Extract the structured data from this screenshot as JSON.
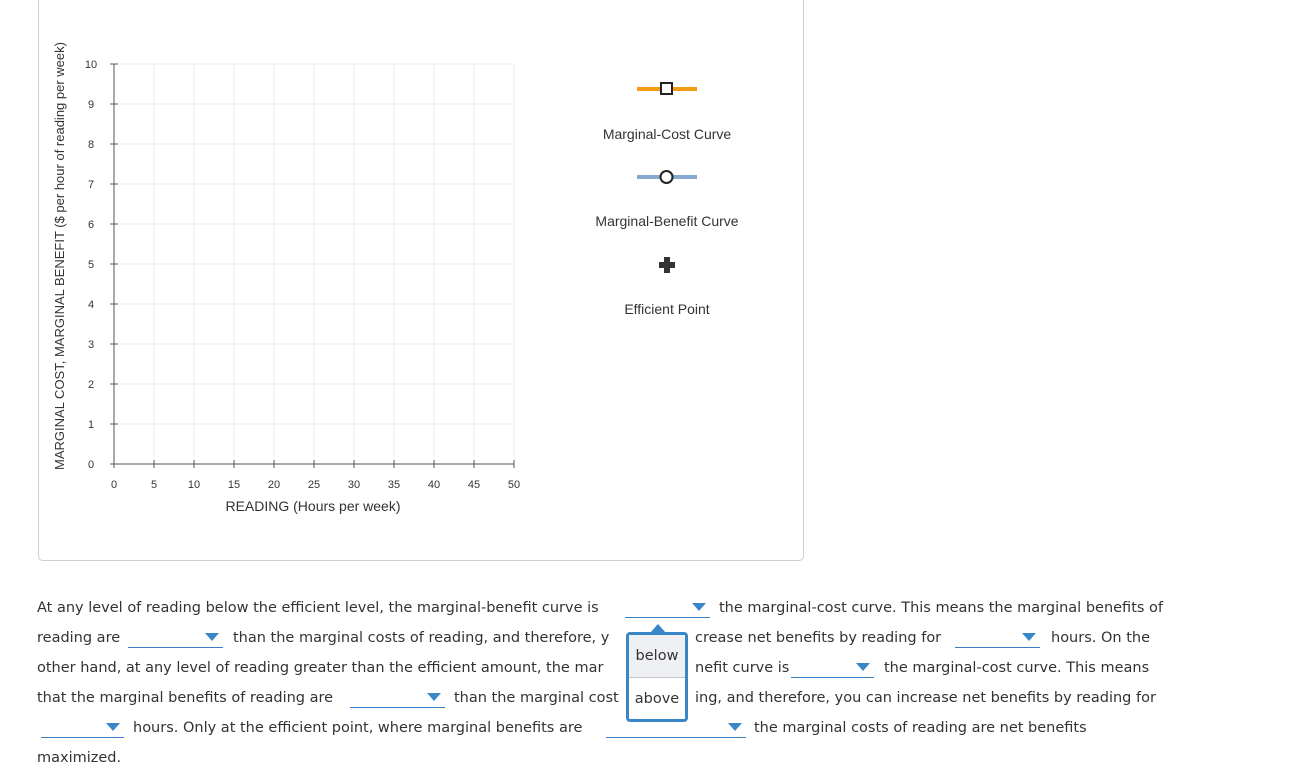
{
  "graph": {
    "y_axis_label": "MARGINAL COST, MARGINAL BENEFIT ($ per hour of reading per week)",
    "x_axis_label": "READING (Hours per week)",
    "y_ticks": [
      "0",
      "1",
      "2",
      "3",
      "4",
      "5",
      "6",
      "7",
      "8",
      "9",
      "10"
    ],
    "x_ticks": [
      "0",
      "5",
      "10",
      "15",
      "20",
      "25",
      "30",
      "35",
      "40",
      "45",
      "50"
    ],
    "x_range": [
      0,
      50
    ],
    "y_range": [
      0,
      10
    ],
    "grid": true
  },
  "legend": {
    "items": [
      {
        "label": "Marginal-Cost Curve",
        "icon": "square-marker-icon",
        "color": "#f39c12"
      },
      {
        "label": "Marginal-Benefit Curve",
        "icon": "circle-marker-icon",
        "color": "#85a9d0"
      },
      {
        "label": "Efficient Point",
        "icon": "plus-marker-icon",
        "color": "#333333"
      }
    ]
  },
  "paragraph": {
    "line1": {
      "a": "At any level of reading below the efficient level, the marginal-benefit curve is",
      "b": "the marginal-cost curve. This means the marginal benefits of"
    },
    "line2": {
      "a": "reading are",
      "b": "than the marginal costs of reading, and therefore, y",
      "c": "crease net benefits by reading for",
      "d": "hours. On the"
    },
    "line3": {
      "a": "other hand, at any level of reading greater than the efficient amount, the mar",
      "b": "nefit curve is",
      "c": "the marginal-cost curve. This means"
    },
    "line4": {
      "a": "that the marginal benefits of reading are",
      "b": "than the marginal cost",
      "c": "ing, and therefore, you can increase net benefits by reading for"
    },
    "line5": {
      "a": "hours. Only at the efficient point, where marginal benefits are",
      "b": "the marginal costs of reading are net benefits"
    },
    "line6": {
      "a": "maximized."
    }
  },
  "popup": {
    "options": [
      "below",
      "above"
    ]
  },
  "colors": {
    "accent": "#3a87c8",
    "mc_curve": "#f39c12",
    "mb_curve": "#85a9d0"
  }
}
